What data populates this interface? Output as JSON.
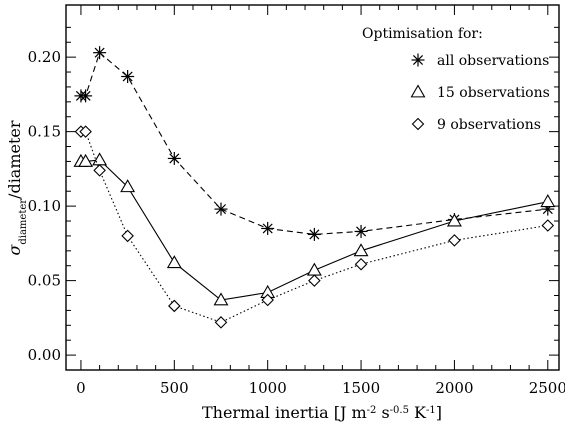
{
  "chart_data": {
    "type": "line",
    "xlabel_parts": {
      "main": "Thermal inertia [J m",
      "exp1": "-2",
      "s": " s",
      "exp2": "-0.5",
      "k": " K",
      "exp3": "-1",
      "close": "]"
    },
    "ylabel_parts": {
      "sigma": "σ",
      "sub": "diameter",
      "rest": "/diameter"
    },
    "xlim": [
      -80,
      2560
    ],
    "ylim": [
      -0.01,
      0.235
    ],
    "xticks": [
      0,
      500,
      1000,
      1500,
      2000,
      2500
    ],
    "xtick_labels": [
      "0",
      "500",
      "1000",
      "1500",
      "2000",
      "2500"
    ],
    "yticks": [
      0.0,
      0.05,
      0.1,
      0.15,
      0.2
    ],
    "ytick_labels": [
      "0.00",
      "0.05",
      "0.10",
      "0.15",
      "0.20"
    ],
    "legend": {
      "title": "Optimisation for:",
      "placement": "top-right"
    },
    "series": [
      {
        "name": "all observations",
        "marker": "asterisk",
        "line_style": "dashed",
        "x": [
          0,
          25,
          100,
          250,
          500,
          750,
          1000,
          1250,
          1500,
          2000,
          2500
        ],
        "y": [
          0.174,
          0.174,
          0.203,
          0.187,
          0.132,
          0.098,
          0.085,
          0.081,
          0.083,
          0.091,
          0.098
        ]
      },
      {
        "name": "15 observations",
        "marker": "triangle",
        "line_style": "solid",
        "x": [
          0,
          25,
          100,
          250,
          500,
          750,
          1000,
          1250,
          1500,
          2000,
          2500
        ],
        "y": [
          0.13,
          0.13,
          0.131,
          0.113,
          0.062,
          0.037,
          0.042,
          0.057,
          0.07,
          0.09,
          0.103
        ]
      },
      {
        "name": "9 observations",
        "marker": "diamond",
        "line_style": "dotted",
        "x": [
          0,
          25,
          100,
          250,
          500,
          750,
          1000,
          1250,
          1500,
          2000,
          2500
        ],
        "y": [
          0.15,
          0.15,
          0.124,
          0.08,
          0.033,
          0.022,
          0.037,
          0.05,
          0.061,
          0.077,
          0.087
        ]
      }
    ]
  }
}
